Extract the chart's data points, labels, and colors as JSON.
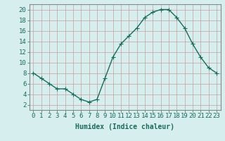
{
  "x": [
    0,
    1,
    2,
    3,
    4,
    5,
    6,
    7,
    8,
    9,
    10,
    11,
    12,
    13,
    14,
    15,
    16,
    17,
    18,
    19,
    20,
    21,
    22,
    23
  ],
  "y": [
    8,
    7,
    6,
    5,
    5,
    4,
    3,
    2.5,
    3,
    7,
    11,
    13.5,
    15,
    16.5,
    18.5,
    19.5,
    20,
    20,
    18.5,
    16.5,
    13.5,
    11,
    9,
    8
  ],
  "line_color": "#1a6b5a",
  "marker": "+",
  "marker_size": 4,
  "background_color": "#d6eeee",
  "grid_color": "#b8d8d8",
  "xlabel": "Humidex (Indice chaleur)",
  "xlim": [
    -0.5,
    23.5
  ],
  "ylim": [
    1,
    21
  ],
  "yticks": [
    2,
    4,
    6,
    8,
    10,
    12,
    14,
    16,
    18,
    20
  ],
  "xticks": [
    0,
    1,
    2,
    3,
    4,
    5,
    6,
    7,
    8,
    9,
    10,
    11,
    12,
    13,
    14,
    15,
    16,
    17,
    18,
    19,
    20,
    21,
    22,
    23
  ],
  "tick_color": "#1a6b5a",
  "axis_color": "#888888",
  "xlabel_fontsize": 7,
  "tick_fontsize": 6.5,
  "linewidth": 1.0,
  "markeredgewidth": 0.8
}
